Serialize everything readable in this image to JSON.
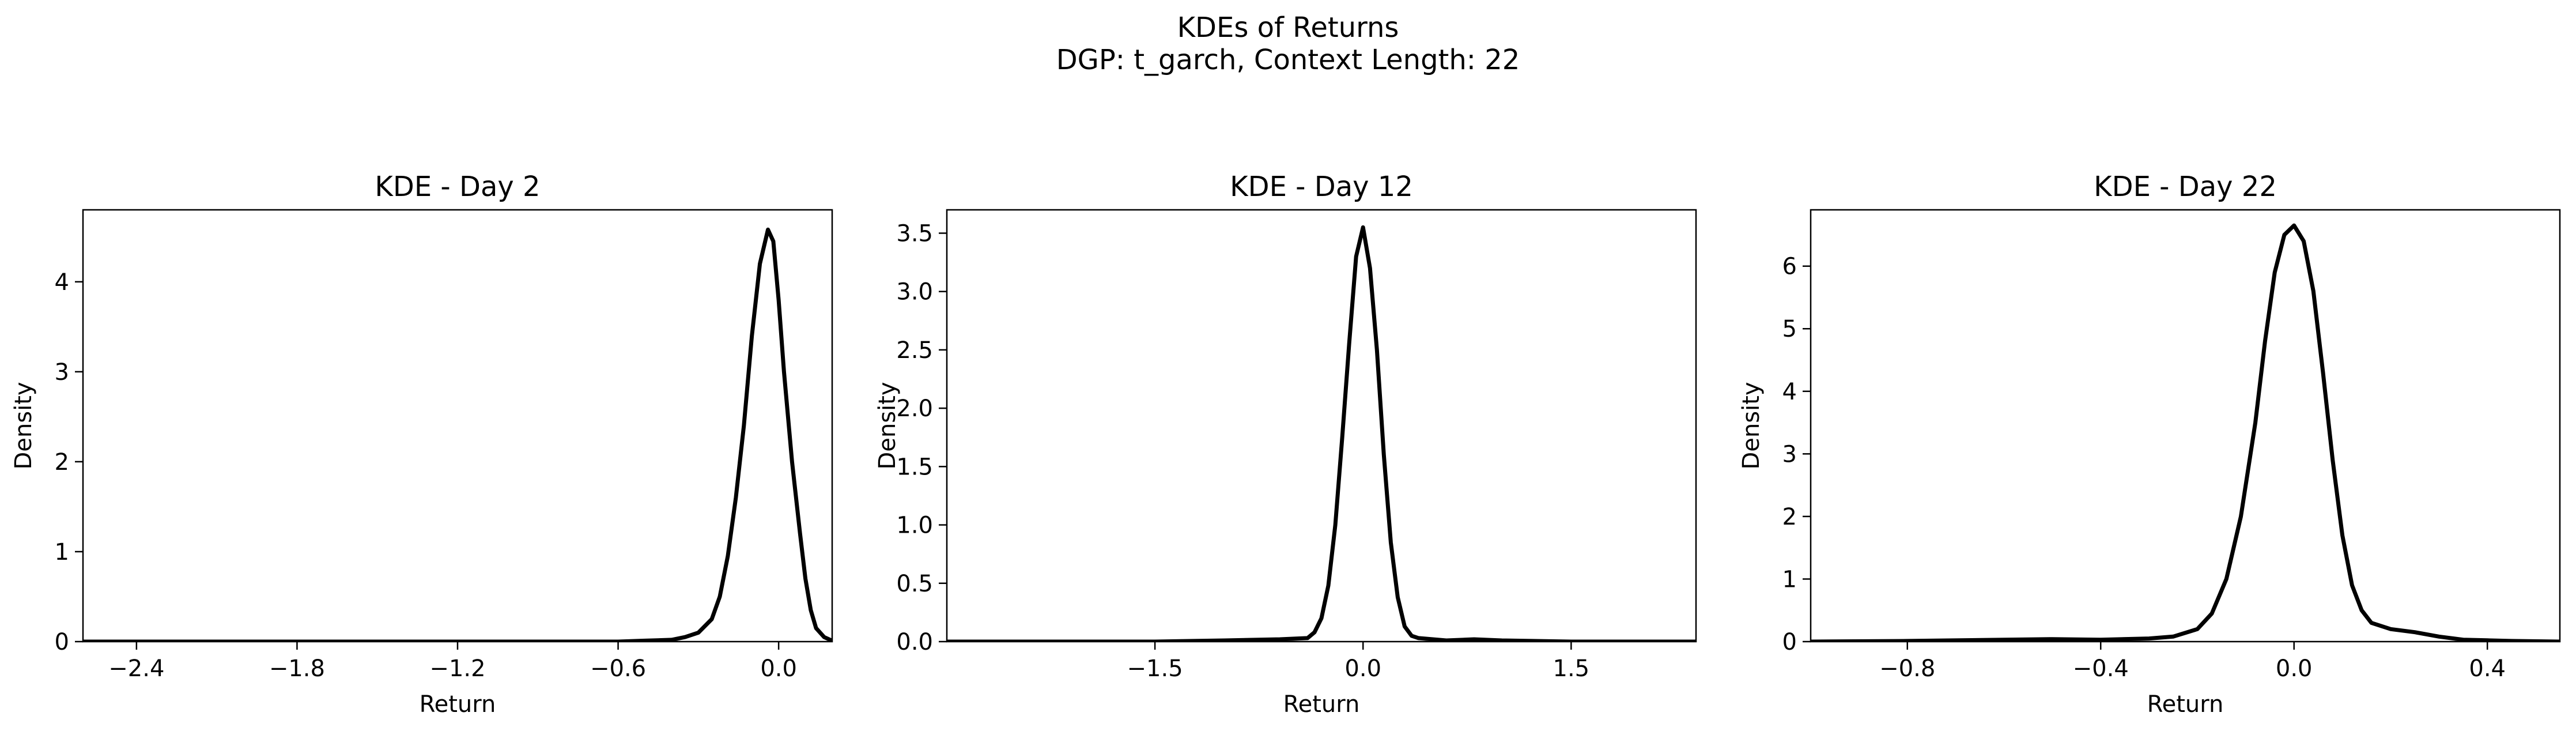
{
  "figure": {
    "title": "KDEs of Returns",
    "subtitle": "DGP: t_garch, Context Length: 22"
  },
  "chart_data": [
    {
      "type": "line",
      "title": "KDE - Day 2",
      "xlabel": "Return",
      "ylabel": "Density",
      "xlim": [
        -2.6,
        0.2
      ],
      "ylim": [
        0,
        4.8
      ],
      "xticks": [
        -2.4,
        -1.8,
        -1.2,
        -0.6,
        0.0
      ],
      "xtick_labels": [
        "−2.4",
        "−1.8",
        "−1.2",
        "−0.6",
        "0.0"
      ],
      "yticks": [
        0,
        1,
        2,
        3,
        4
      ],
      "ytick_labels": [
        "0",
        "1",
        "2",
        "3",
        "4"
      ],
      "grid": false,
      "series": [
        {
          "color": "#000000",
          "x": [
            -2.6,
            -2.0,
            -1.5,
            -1.0,
            -0.6,
            -0.5,
            -0.4,
            -0.35,
            -0.3,
            -0.25,
            -0.22,
            -0.19,
            -0.16,
            -0.13,
            -0.1,
            -0.07,
            -0.04,
            -0.02,
            0.0,
            0.02,
            0.05,
            0.08,
            0.1,
            0.12,
            0.14,
            0.17,
            0.2
          ],
          "y": [
            0.0,
            0.0,
            0.0,
            0.0,
            0.0,
            0.01,
            0.02,
            0.05,
            0.1,
            0.25,
            0.5,
            0.95,
            1.6,
            2.4,
            3.4,
            4.2,
            4.58,
            4.45,
            3.8,
            3.0,
            2.0,
            1.2,
            0.7,
            0.35,
            0.15,
            0.05,
            0.01
          ]
        }
      ]
    },
    {
      "type": "line",
      "title": "KDE - Day 12",
      "xlabel": "Return",
      "ylabel": "Density",
      "xlim": [
        -3.0,
        2.4
      ],
      "ylim": [
        0,
        3.7
      ],
      "xticks": [
        -1.5,
        0.0,
        1.5
      ],
      "xtick_labels": [
        "−1.5",
        "0.0",
        "1.5"
      ],
      "yticks": [
        0.0,
        0.5,
        1.0,
        1.5,
        2.0,
        2.5,
        3.0,
        3.5
      ],
      "ytick_labels": [
        "0.0",
        "0.5",
        "1.0",
        "1.5",
        "2.0",
        "2.5",
        "3.0",
        "3.5"
      ],
      "grid": false,
      "series": [
        {
          "color": "#000000",
          "x": [
            -3.0,
            -2.0,
            -1.5,
            -1.0,
            -0.6,
            -0.4,
            -0.35,
            -0.3,
            -0.25,
            -0.2,
            -0.15,
            -0.1,
            -0.05,
            0.0,
            0.05,
            0.1,
            0.15,
            0.2,
            0.25,
            0.3,
            0.35,
            0.4,
            0.6,
            0.8,
            1.0,
            1.5,
            2.4
          ],
          "y": [
            0.0,
            0.0,
            0.0,
            0.01,
            0.02,
            0.03,
            0.08,
            0.2,
            0.48,
            1.0,
            1.75,
            2.55,
            3.3,
            3.55,
            3.2,
            2.5,
            1.6,
            0.85,
            0.38,
            0.13,
            0.05,
            0.03,
            0.01,
            0.02,
            0.01,
            0.0,
            0.0
          ]
        }
      ]
    },
    {
      "type": "line",
      "title": "KDE - Day 22",
      "xlabel": "Return",
      "ylabel": "Density",
      "xlim": [
        -1.0,
        0.55
      ],
      "ylim": [
        0,
        6.9
      ],
      "xticks": [
        -0.8,
        -0.4,
        0.0,
        0.4
      ],
      "xtick_labels": [
        "−0.8",
        "−0.4",
        "0.0",
        "0.4"
      ],
      "yticks": [
        0,
        1,
        2,
        3,
        4,
        5,
        6
      ],
      "ytick_labels": [
        "0",
        "1",
        "2",
        "3",
        "4",
        "5",
        "6"
      ],
      "grid": false,
      "series": [
        {
          "color": "#000000",
          "x": [
            -1.0,
            -0.8,
            -0.6,
            -0.5,
            -0.4,
            -0.3,
            -0.25,
            -0.2,
            -0.17,
            -0.14,
            -0.11,
            -0.08,
            -0.06,
            -0.04,
            -0.02,
            0.0,
            0.02,
            0.04,
            0.06,
            0.08,
            0.1,
            0.12,
            0.14,
            0.16,
            0.2,
            0.25,
            0.3,
            0.35,
            0.4,
            0.45,
            0.55
          ],
          "y": [
            0.0,
            0.01,
            0.03,
            0.04,
            0.03,
            0.05,
            0.08,
            0.2,
            0.45,
            1.0,
            2.0,
            3.5,
            4.8,
            5.9,
            6.5,
            6.65,
            6.4,
            5.6,
            4.3,
            2.9,
            1.7,
            0.9,
            0.5,
            0.3,
            0.2,
            0.15,
            0.08,
            0.03,
            0.02,
            0.01,
            0.0
          ]
        }
      ]
    }
  ]
}
